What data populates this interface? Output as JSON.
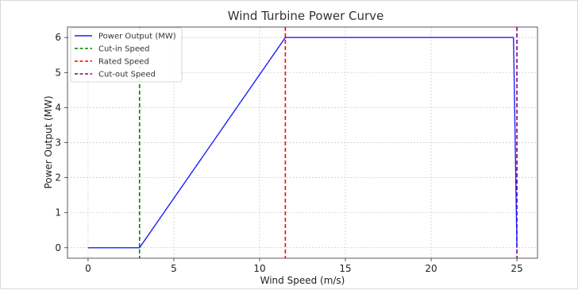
{
  "chart_data": {
    "type": "line",
    "title": "Wind Turbine Power Curve",
    "xlabel": "Wind Speed (m/s)",
    "ylabel": "Power Output (MW)",
    "xlim": [
      -1.2,
      26.2
    ],
    "ylim": [
      -0.3,
      6.3
    ],
    "xticks": [
      0,
      5,
      10,
      15,
      20,
      25
    ],
    "yticks": [
      0,
      1,
      2,
      3,
      4,
      5,
      6
    ],
    "grid": true,
    "legend_position": "top-left",
    "series": [
      {
        "name": "Power Output (MW)",
        "style": "solid",
        "color": "#1f1fff",
        "x": [
          0,
          3,
          11.5,
          24.8,
          25
        ],
        "y": [
          0,
          0,
          6,
          6,
          0
        ]
      }
    ],
    "vlines": [
      {
        "name": "Cut-in Speed",
        "x": 3,
        "style": "dashed",
        "color": "#008000"
      },
      {
        "name": "Rated Speed",
        "x": 11.5,
        "style": "dashed",
        "color": "#ff0000"
      },
      {
        "name": "Cut-out Speed",
        "x": 25,
        "style": "dashed",
        "color": "#800080"
      }
    ]
  }
}
